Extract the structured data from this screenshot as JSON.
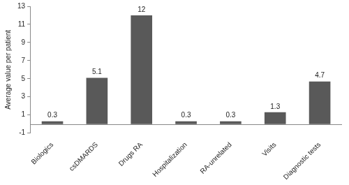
{
  "chart_data": {
    "type": "bar",
    "y_label": "Average value per patient",
    "categories": [
      "Biologics",
      "csDMARDS",
      "Drugs RA",
      "Hospitalization",
      "RA-unrelated",
      "Visits",
      "Diagnostic tests"
    ],
    "values": [
      0.3,
      5.1,
      12,
      0.3,
      0.3,
      1.3,
      4.7
    ],
    "color": "#595959",
    "ylim": [
      -1,
      13
    ],
    "yticks": [
      -1,
      1,
      3,
      5,
      7,
      9,
      11,
      13
    ],
    "grid": false,
    "data_labels": true
  }
}
